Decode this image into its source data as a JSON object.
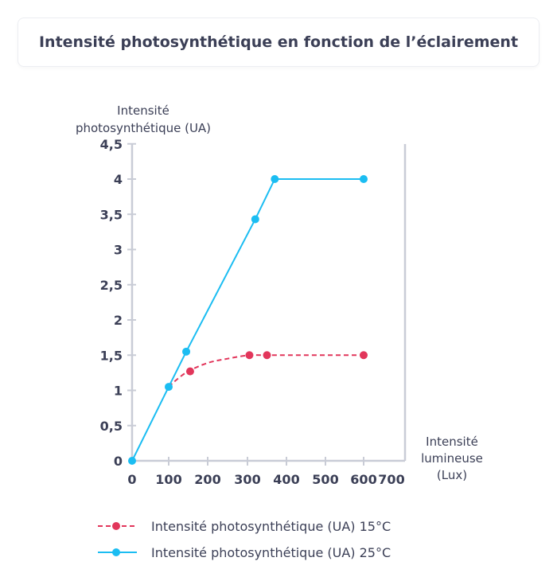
{
  "title": "Intensité photosynthétique en fonction de l’éclairement",
  "chart_data": {
    "type": "line",
    "title": "Intensité photosynthétique en fonction de l’éclairement",
    "ylabel_lines": [
      "Intensité",
      "photosynthétique (UA)"
    ],
    "xlabel_lines": [
      "Intensité",
      "lumineuse",
      "(Lux)"
    ],
    "x_ticks": [
      0,
      100,
      200,
      300,
      400,
      500,
      600,
      700
    ],
    "y_ticks": [
      0,
      0.5,
      1,
      1.5,
      2,
      2.5,
      3,
      3.5,
      4,
      4.5
    ],
    "y_tick_labels": [
      "0",
      "0,5",
      "1",
      "1,5",
      "2",
      "2,5",
      "3",
      "3,5",
      "4",
      "4,5"
    ],
    "xlim": [
      0,
      700
    ],
    "ylim": [
      0,
      4.6
    ],
    "series": [
      {
        "name": "Intensité photosynthétique (UA) 15°C",
        "color": "#e2365b",
        "style": "dashed",
        "curve": [
          [
            100,
            1.05
          ],
          [
            120,
            1.15
          ],
          [
            150,
            1.27
          ],
          [
            200,
            1.39
          ],
          [
            250,
            1.45
          ],
          [
            305,
            1.5
          ],
          [
            350,
            1.5
          ],
          [
            600,
            1.5
          ]
        ],
        "markers": [
          [
            155,
            1.27
          ],
          [
            305,
            1.5
          ],
          [
            350,
            1.5
          ],
          [
            600,
            1.5
          ]
        ]
      },
      {
        "name": "Intensité photosynthétique (UA) 25°C",
        "color": "#1bbdf2",
        "style": "solid",
        "curve": [
          [
            0,
            0
          ],
          [
            100,
            1.05
          ],
          [
            145,
            1.55
          ],
          [
            320,
            3.43
          ],
          [
            370,
            4.0
          ],
          [
            600,
            4.0
          ]
        ],
        "markers": [
          [
            0,
            0
          ],
          [
            100,
            1.05
          ],
          [
            145,
            1.55
          ],
          [
            320,
            3.43
          ],
          [
            370,
            4.0
          ],
          [
            600,
            4.0
          ]
        ]
      }
    ]
  }
}
